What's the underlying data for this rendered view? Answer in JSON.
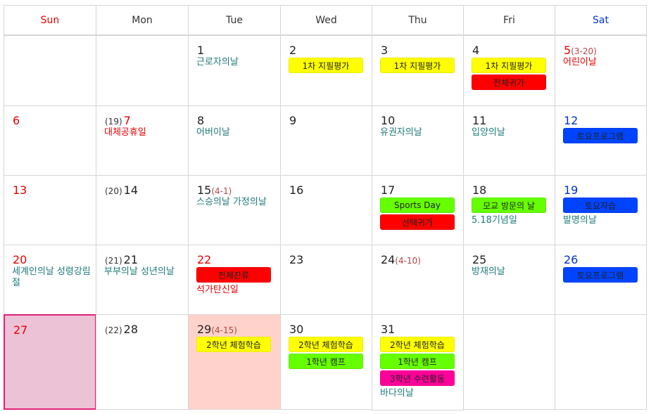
{
  "weekdays": [
    "Sun",
    "Mon",
    "Tue",
    "Wed",
    "Thu",
    "Fri",
    "Sat"
  ],
  "colors": {
    "yellow": "#ffff00",
    "red": "#ff0000",
    "green": "#66ff00",
    "blue": "#0044ff",
    "magenta": "#ff0099",
    "today_border": "#e0207a",
    "today_bg": "#ecc3d6",
    "highlight_bg": "#ffd3cc"
  },
  "weeks": [
    [
      {
        "day": "",
        "holiday": ""
      },
      {
        "day": "",
        "holiday": ""
      },
      {
        "day": "1",
        "holiday": "근로자의날"
      },
      {
        "day": "2",
        "holiday": "",
        "events": [
          {
            "label": "1차 지필평가",
            "color": "yellow"
          }
        ]
      },
      {
        "day": "3",
        "holiday": "",
        "events": [
          {
            "label": "1차 지필평가",
            "color": "yellow"
          }
        ]
      },
      {
        "day": "4",
        "holiday": "",
        "events": [
          {
            "label": "1차 지필평가",
            "color": "yellow"
          },
          {
            "label": "전체귀가",
            "color": "red"
          }
        ]
      },
      {
        "day": "5",
        "lunar": "(3-20)",
        "holiday": "어린이날"
      }
    ],
    [
      {
        "day": "6",
        "holiday": ""
      },
      {
        "pre": "(19)",
        "day": "7",
        "holiday": "대체공휴일"
      },
      {
        "day": "8",
        "holiday": "어버이날"
      },
      {
        "day": "9",
        "holiday": ""
      },
      {
        "day": "10",
        "holiday": "유권자의날"
      },
      {
        "day": "11",
        "holiday": "입양의날"
      },
      {
        "day": "12",
        "holiday": "",
        "events": [
          {
            "label": "토요프로그램",
            "color": "blue"
          }
        ]
      }
    ],
    [
      {
        "day": "13",
        "holiday": ""
      },
      {
        "pre": "(20)",
        "day": "14",
        "holiday": ""
      },
      {
        "day": "15",
        "lunar": "(4-1)",
        "holiday": "스승의날 가정의날"
      },
      {
        "day": "16",
        "holiday": ""
      },
      {
        "day": "17",
        "holiday": "",
        "events": [
          {
            "label": "Sports Day",
            "color": "green"
          },
          {
            "label": "선택귀가",
            "color": "red"
          }
        ]
      },
      {
        "day": "18",
        "holiday": "5.18기념일",
        "events": [
          {
            "label": "모교 방문의 날",
            "color": "green"
          }
        ]
      },
      {
        "day": "19",
        "holiday": "발명의날",
        "events": [
          {
            "label": "토요자습",
            "color": "blue"
          }
        ]
      }
    ],
    [
      {
        "day": "20",
        "holiday": "세계인의날 성령강림절"
      },
      {
        "pre": "(21)",
        "day": "21",
        "holiday": "부부의날 성년의날"
      },
      {
        "day": "22",
        "holiday": "석가탄신일",
        "events": [
          {
            "label": "전체잔류",
            "color": "red"
          }
        ]
      },
      {
        "day": "23",
        "holiday": ""
      },
      {
        "day": "24",
        "lunar": "(4-10)",
        "holiday": ""
      },
      {
        "day": "25",
        "holiday": "방재의날"
      },
      {
        "day": "26",
        "holiday": "",
        "events": [
          {
            "label": "토요프로그램",
            "color": "blue"
          }
        ]
      }
    ],
    [
      {
        "day": "27",
        "holiday": ""
      },
      {
        "pre": "(22)",
        "day": "28",
        "holiday": ""
      },
      {
        "day": "29",
        "lunar": "(4-15)",
        "holiday": "",
        "events": [
          {
            "label": "2학년 체험학습",
            "color": "yellow"
          }
        ]
      },
      {
        "day": "30",
        "holiday": "",
        "events": [
          {
            "label": "2학년 체험학습",
            "color": "yellow"
          },
          {
            "label": "1학년 캠프",
            "color": "green"
          }
        ]
      },
      {
        "day": "31",
        "holiday": "바다의날",
        "events": [
          {
            "label": "2학년 체험학습",
            "color": "yellow"
          },
          {
            "label": "1학년 캠프",
            "color": "green"
          },
          {
            "label": "3학년 수련활동",
            "color": "magenta"
          }
        ]
      },
      {
        "day": "",
        "holiday": ""
      },
      {
        "day": "",
        "holiday": ""
      }
    ]
  ]
}
